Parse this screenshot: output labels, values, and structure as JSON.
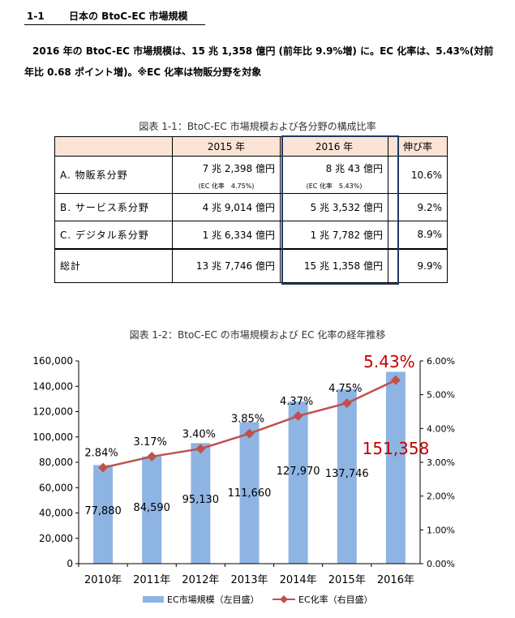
{
  "section": {
    "number": "1-1",
    "title": "日本の BtoC-EC 市場規模"
  },
  "intro": "2016 年の BtoC-EC 市場規模は、15 兆 1,358 億円 (前年比 9.9%増) に。EC 化率は、5.43%(対前年比 0.68 ポイント増)。※EC 化率は物販分野を対象",
  "table": {
    "caption": "図表 1-1：BtoC-EC 市場規模および各分野の構成比率",
    "headers": [
      "",
      "2015 年",
      "2016 年",
      "伸び率"
    ],
    "rows": [
      {
        "label": "A. 物販系分野",
        "y2015": "7 兆 2,398 億円",
        "y2016": "8 兆 43 億円",
        "growth": "10.6%",
        "note2015": "(EC 化率　4.75%)",
        "note2016": "(EC 化率　5.43%)"
      },
      {
        "label": "B. サービス系分野",
        "y2015": "4 兆 9,014 億円",
        "y2016": "5 兆 3,532 億円",
        "growth": "9.2%"
      },
      {
        "label": "C. デジタル系分野",
        "y2015": "1 兆 6,334 億円",
        "y2016": "1 兆 7,782 億円",
        "growth": "8.9%"
      },
      {
        "label": "総計",
        "y2015": "13 兆 7,746 億円",
        "y2016": "15 兆 1,358 億円",
        "growth": "9.9%"
      }
    ]
  },
  "chart_caption": "図表 1-2：BtoC-EC の市場規模および EC 化率の経年推移",
  "chart_data": {
    "type": "bar",
    "categories": [
      "2010年",
      "2011年",
      "2012年",
      "2013年",
      "2014年",
      "2015年",
      "2016年"
    ],
    "series": [
      {
        "name": "EC市場規模（左目盛）",
        "type": "bar",
        "axis": "left",
        "values": [
          77880,
          84590,
          95130,
          111660,
          127970,
          137746,
          151358
        ],
        "labels": [
          "77,880",
          "84,590",
          "95,130",
          "111,660",
          "127,970",
          "137,746",
          "151,358"
        ]
      },
      {
        "name": "EC化率（右目盛）",
        "type": "line",
        "axis": "right",
        "values": [
          2.84,
          3.17,
          3.4,
          3.85,
          4.37,
          4.75,
          5.43
        ],
        "labels": [
          "2.84%",
          "3.17%",
          "3.40%",
          "3.85%",
          "4.37%",
          "4.75%",
          "5.43%"
        ]
      }
    ],
    "ylim_left": [
      0,
      160000
    ],
    "ylim_right": [
      0,
      6
    ],
    "left_ticks": [
      "0",
      "20,000",
      "40,000",
      "60,000",
      "80,000",
      "100,000",
      "120,000",
      "140,000",
      "160,000"
    ],
    "right_ticks": [
      "0.00%",
      "1.00%",
      "2.00%",
      "3.00%",
      "4.00%",
      "5.00%",
      "6.00%"
    ],
    "legend_position": "bottom",
    "colors": {
      "bar": "#8eb4e3",
      "line": "#c0504d",
      "highlight": "#c00000"
    }
  }
}
